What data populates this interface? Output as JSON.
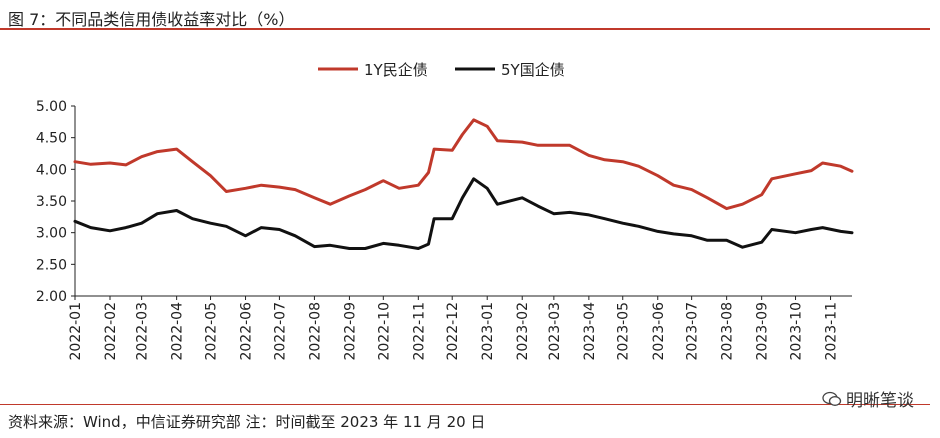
{
  "title": "图 7：不同品类信用债收益率对比（%）",
  "source_note": "资料来源：Wind，中信证券研究部 注：时间截至 2023 年 11 月 20 日",
  "watermark": {
    "text": "明晰笔谈",
    "icon": "wechat-icon"
  },
  "colors": {
    "accent_rule": "#c0392b",
    "series_1y": "#c0392b",
    "series_5y": "#111111"
  },
  "chart_data": {
    "type": "line",
    "ylim": [
      2.0,
      5.0
    ],
    "y_ticks": [
      "5.00",
      "4.50",
      "4.00",
      "3.50",
      "3.00",
      "2.50",
      "2.00"
    ],
    "x_ticks": [
      "2022-01",
      "2022-02",
      "2022-03",
      "2022-04",
      "2022-05",
      "2022-06",
      "2022-07",
      "2022-08",
      "2022-09",
      "2022-10",
      "2022-11",
      "2022-12",
      "2023-01",
      "2023-02",
      "2023-03",
      "2023-04",
      "2023-05",
      "2023-06",
      "2023-07",
      "2023-08",
      "2023-09",
      "2023-10",
      "2023-11"
    ],
    "legend_position": "top-center",
    "grid": false,
    "series": [
      {
        "name": "1Y民企债",
        "values": [
          [
            "2022-01-01",
            4.12
          ],
          [
            "2022-01-15",
            4.08
          ],
          [
            "2022-02-01",
            4.1
          ],
          [
            "2022-02-15",
            4.07
          ],
          [
            "2022-03-01",
            4.2
          ],
          [
            "2022-03-15",
            4.28
          ],
          [
            "2022-04-01",
            4.32
          ],
          [
            "2022-04-15",
            4.12
          ],
          [
            "2022-05-01",
            3.9
          ],
          [
            "2022-05-15",
            3.65
          ],
          [
            "2022-06-01",
            3.7
          ],
          [
            "2022-06-15",
            3.75
          ],
          [
            "2022-07-01",
            3.72
          ],
          [
            "2022-07-15",
            3.68
          ],
          [
            "2022-08-01",
            3.55
          ],
          [
            "2022-08-15",
            3.45
          ],
          [
            "2022-09-01",
            3.58
          ],
          [
            "2022-09-15",
            3.68
          ],
          [
            "2022-10-01",
            3.82
          ],
          [
            "2022-10-15",
            3.7
          ],
          [
            "2022-11-01",
            3.75
          ],
          [
            "2022-11-10",
            3.95
          ],
          [
            "2022-11-15",
            4.32
          ],
          [
            "2022-12-01",
            4.3
          ],
          [
            "2022-12-10",
            4.55
          ],
          [
            "2022-12-20",
            4.78
          ],
          [
            "2023-01-01",
            4.68
          ],
          [
            "2023-01-10",
            4.45
          ],
          [
            "2023-02-01",
            4.43
          ],
          [
            "2023-02-15",
            4.38
          ],
          [
            "2023-03-01",
            4.38
          ],
          [
            "2023-03-15",
            4.38
          ],
          [
            "2023-04-01",
            4.22
          ],
          [
            "2023-04-15",
            4.15
          ],
          [
            "2023-05-01",
            4.12
          ],
          [
            "2023-05-15",
            4.05
          ],
          [
            "2023-06-01",
            3.9
          ],
          [
            "2023-06-15",
            3.75
          ],
          [
            "2023-07-01",
            3.68
          ],
          [
            "2023-07-15",
            3.55
          ],
          [
            "2023-08-01",
            3.38
          ],
          [
            "2023-08-15",
            3.45
          ],
          [
            "2023-09-01",
            3.6
          ],
          [
            "2023-09-10",
            3.85
          ],
          [
            "2023-10-01",
            3.93
          ],
          [
            "2023-10-15",
            3.98
          ],
          [
            "2023-10-25",
            4.1
          ],
          [
            "2023-11-10",
            4.05
          ],
          [
            "2023-11-20",
            3.97
          ]
        ]
      },
      {
        "name": "5Y国企债",
        "values": [
          [
            "2022-01-01",
            3.18
          ],
          [
            "2022-01-15",
            3.08
          ],
          [
            "2022-02-01",
            3.03
          ],
          [
            "2022-02-15",
            3.08
          ],
          [
            "2022-03-01",
            3.15
          ],
          [
            "2022-03-15",
            3.3
          ],
          [
            "2022-04-01",
            3.35
          ],
          [
            "2022-04-15",
            3.22
          ],
          [
            "2022-05-01",
            3.15
          ],
          [
            "2022-05-15",
            3.1
          ],
          [
            "2022-06-01",
            2.95
          ],
          [
            "2022-06-15",
            3.08
          ],
          [
            "2022-07-01",
            3.05
          ],
          [
            "2022-07-15",
            2.95
          ],
          [
            "2022-08-01",
            2.78
          ],
          [
            "2022-08-15",
            2.8
          ],
          [
            "2022-09-01",
            2.75
          ],
          [
            "2022-09-15",
            2.75
          ],
          [
            "2022-10-01",
            2.83
          ],
          [
            "2022-10-15",
            2.8
          ],
          [
            "2022-11-01",
            2.75
          ],
          [
            "2022-11-10",
            2.82
          ],
          [
            "2022-11-15",
            3.22
          ],
          [
            "2022-12-01",
            3.22
          ],
          [
            "2022-12-10",
            3.55
          ],
          [
            "2022-12-20",
            3.85
          ],
          [
            "2023-01-01",
            3.7
          ],
          [
            "2023-01-10",
            3.45
          ],
          [
            "2023-02-01",
            3.55
          ],
          [
            "2023-02-15",
            3.42
          ],
          [
            "2023-03-01",
            3.3
          ],
          [
            "2023-03-15",
            3.32
          ],
          [
            "2023-04-01",
            3.28
          ],
          [
            "2023-04-15",
            3.22
          ],
          [
            "2023-05-01",
            3.15
          ],
          [
            "2023-05-15",
            3.1
          ],
          [
            "2023-06-01",
            3.02
          ],
          [
            "2023-06-15",
            2.98
          ],
          [
            "2023-07-01",
            2.95
          ],
          [
            "2023-07-15",
            2.88
          ],
          [
            "2023-08-01",
            2.88
          ],
          [
            "2023-08-15",
            2.77
          ],
          [
            "2023-09-01",
            2.85
          ],
          [
            "2023-09-10",
            3.05
          ],
          [
            "2023-10-01",
            3.0
          ],
          [
            "2023-10-15",
            3.05
          ],
          [
            "2023-10-25",
            3.08
          ],
          [
            "2023-11-10",
            3.02
          ],
          [
            "2023-11-20",
            3.0
          ]
        ]
      }
    ]
  }
}
